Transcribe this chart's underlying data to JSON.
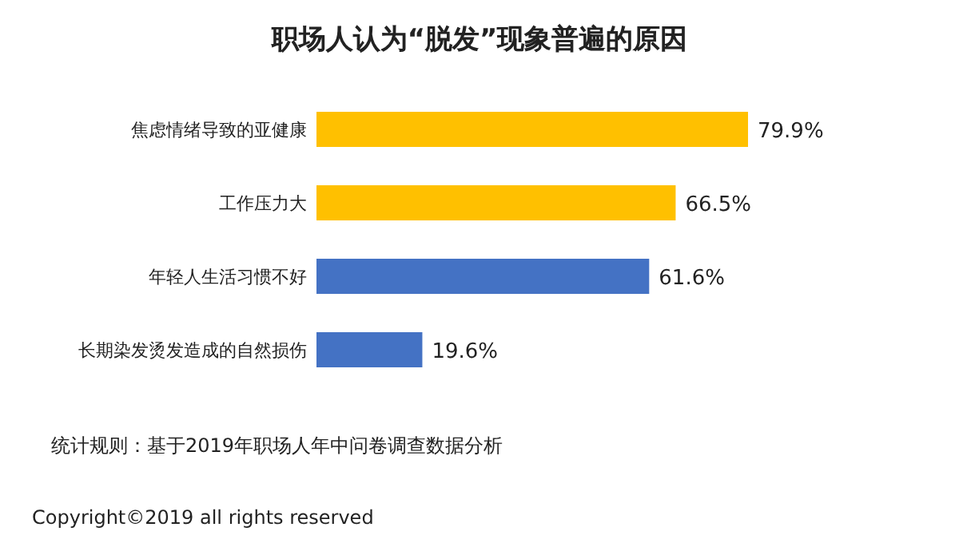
{
  "chart_data": {
    "type": "bar",
    "orientation": "horizontal",
    "title": "职场人认为“脱发”现象普遍的原因",
    "categories": [
      "焦虑情绪导致的亚健康",
      "工作压力大",
      "年轻人生活习惯不好",
      "长期染发烫发造成的自然损伤"
    ],
    "values": [
      79.9,
      66.5,
      61.6,
      19.6
    ],
    "colors": [
      "#ffc000",
      "#ffc000",
      "#4472c4",
      "#4472c4"
    ],
    "value_labels": [
      "79.9%",
      "66.5%",
      "61.6%",
      "19.6%"
    ],
    "annotations": [
      "统计规则：基于2019年职场人年中问卷调查数据分析",
      "Copyright©2019 all rights reserved"
    ]
  }
}
